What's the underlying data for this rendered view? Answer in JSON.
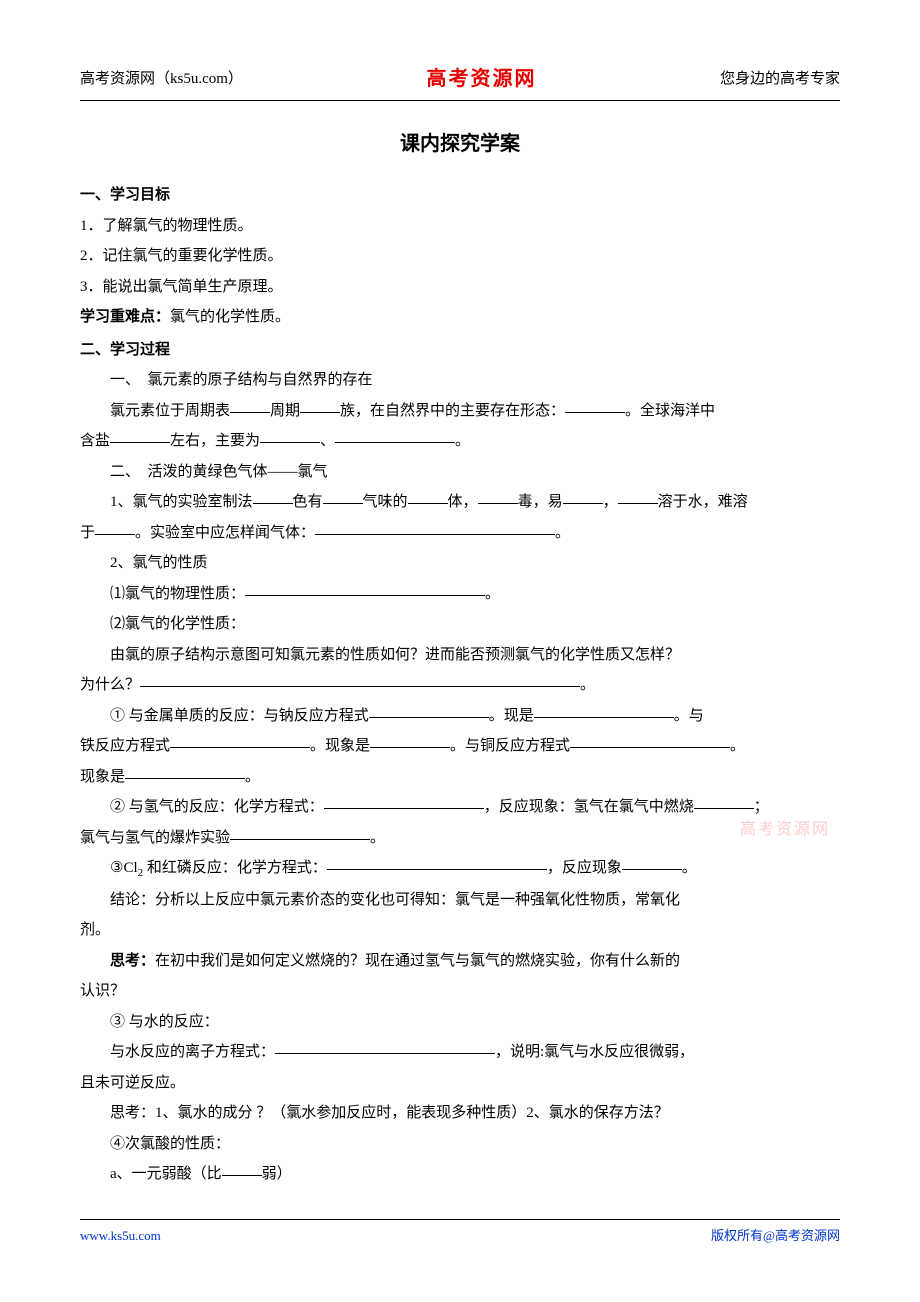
{
  "header": {
    "left": "高考资源网（ks5u.com）",
    "center": "高考资源网",
    "right": "您身边的高考专家"
  },
  "title": "课内探究学案",
  "sections": {
    "objectives_heading": "一、学习目标",
    "objectives": [
      "1．了解氯气的物理性质。",
      "2．记住氯气的重要化学性质。",
      "3．能说出氯气简单生产原理。"
    ],
    "focus_label": "学习重难点：",
    "focus_value": "氯气的化学性质。",
    "process_heading": "二、学习过程",
    "sub1_heading": "一、　氯元素的原子结构与自然界的存在",
    "sub1_p1_a": "氯元素位于周期表",
    "sub1_p1_b": "周期",
    "sub1_p1_c": "族，在自然界中的主要存在形态：",
    "sub1_p1_d": "。全球海洋中",
    "sub1_p2_a": "含盐",
    "sub1_p2_b": "左右，主要为",
    "sub1_p2_c": "、",
    "sub1_p2_d": "。",
    "sub2_heading": "二、　活泼的黄绿色气体——氯气",
    "sub2_1_a": "1、氯气的实验室制法",
    "sub2_1_b": "色有",
    "sub2_1_c": "气味的",
    "sub2_1_d": "体，",
    "sub2_1_e": "毒，易",
    "sub2_1_f": "，",
    "sub2_1_g": "溶于水，难溶",
    "sub2_1_h": "于",
    "sub2_1_i": "。实验室中应怎样闻气体：",
    "sub2_1_j": "。",
    "sub2_2": "2、氯气的性质",
    "sub2_2_1a": "⑴氯气的物理性质：",
    "sub2_2_1b": "。",
    "sub2_2_2": "⑵氯气的化学性质：",
    "sub2_2_2_p1": "由氯的原子结构示意图可知氯元素的性质如何？进而能否预测氯气的化学性质又怎样？",
    "sub2_2_2_p2a": "为什么？",
    "sub2_2_2_p2b": "。",
    "react1_a": "① 与金属单质的反应：与钠反应方程式",
    "react1_b": "。现是",
    "react1_c": "。与",
    "react1_d": "铁反应方程式",
    "react1_e": "。现象是",
    "react1_f": "。与铜反应方程式",
    "react1_g": "。",
    "react1_h": "现象是",
    "react1_i": "。",
    "react2_a": "② 与氢气的反应：化学方程式：",
    "react2_b": "，反应现象：氢气在氯气中燃烧",
    "react2_c": "；",
    "react2_d": "氯气与氢气的爆炸实验",
    "react2_e": "。",
    "react3_a": "③Cl",
    "react3_sub": "2",
    "react3_b": " 和红磷反应：化学方程式：",
    "react3_c": "，反应现象",
    "react3_d": "。",
    "conclusion": "结论：分析以上反应中氯元素价态的变化也可得知：氯气是一种强氧化性物质，常氧化",
    "conclusion_b": "剂。",
    "think_label": "思考：",
    "think_text": "在初中我们是如何定义燃烧的？现在通过氢气与氯气的燃烧实验，你有什么新的",
    "think_text2": "认识？",
    "react4": "③ 与水的反应：",
    "react4_a": "与水反应的离子方程式：",
    "react4_b": "，说明:氯气与水反应很微弱，",
    "react4_c": "且未可逆反应。",
    "think2": "思考：1、氯水的成分 ？（氯水参加反应时，能表现多种性质）2、氯水的保存方法？",
    "react5": "④次氯酸的性质：",
    "react5_a_a": "a、一元弱酸（比",
    "react5_a_b": "弱）"
  },
  "watermark": "高考资源网",
  "footer": {
    "left": "www.ks5u.com",
    "right": "版权所有@高考资源网"
  }
}
